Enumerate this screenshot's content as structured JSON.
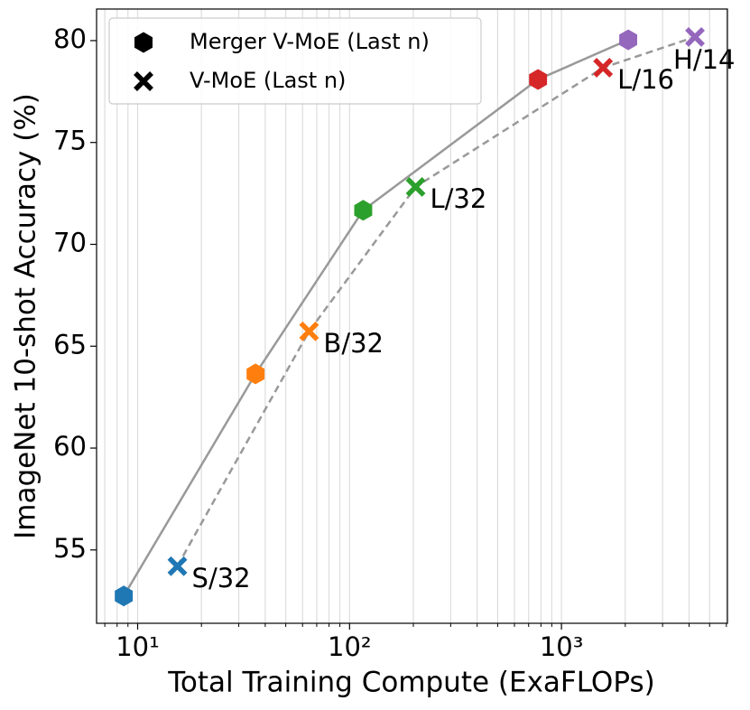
{
  "chart_data": {
    "type": "line",
    "xlabel": "Total Training Compute (ExaFLOPs)",
    "ylabel": "ImageNet 10-shot Accuracy (%)",
    "xscale": "log",
    "xlim": [
      6.4,
      6070
    ],
    "ylim": [
      51.4,
      81.55
    ],
    "xticks": [
      {
        "value": 10,
        "label": "10¹"
      },
      {
        "value": 100,
        "label": "10²"
      },
      {
        "value": 1000,
        "label": "10³"
      }
    ],
    "xminorticks": [
      7,
      8,
      9,
      20,
      30,
      40,
      50,
      60,
      70,
      80,
      90,
      200,
      300,
      400,
      500,
      600,
      700,
      800,
      900,
      2000,
      3000,
      4000,
      5000,
      6000
    ],
    "yticks": [
      55,
      60,
      65,
      70,
      75,
      80
    ],
    "grid": "x",
    "legend": "upper left",
    "series": [
      {
        "name": "Merger V-MoE (Last n)",
        "marker": "hexagon",
        "line_color": "#999999",
        "dash": false,
        "colors": [
          "#1f77b4",
          "#ff7f0e",
          "#2ca02c",
          "#d62728",
          "#9467bd"
        ],
        "x": [
          8.6,
          36,
          116,
          775,
          2065
        ],
        "values": [
          52.74,
          63.64,
          71.67,
          78.09,
          80.04
        ]
      },
      {
        "name": "V-MoE (Last n)",
        "marker": "x",
        "line_color": "#999999",
        "dash": true,
        "colors": [
          "#1f77b4",
          "#ff7f0e",
          "#2ca02c",
          "#d62728",
          "#9467bd"
        ],
        "x": [
          15.4,
          64.4,
          205,
          1571,
          4266
        ],
        "values": [
          54.2,
          65.73,
          72.82,
          78.67,
          80.18
        ],
        "point_labels": [
          "S/32",
          "B/32",
          "L/32",
          "L/16",
          "H/14"
        ]
      }
    ]
  }
}
